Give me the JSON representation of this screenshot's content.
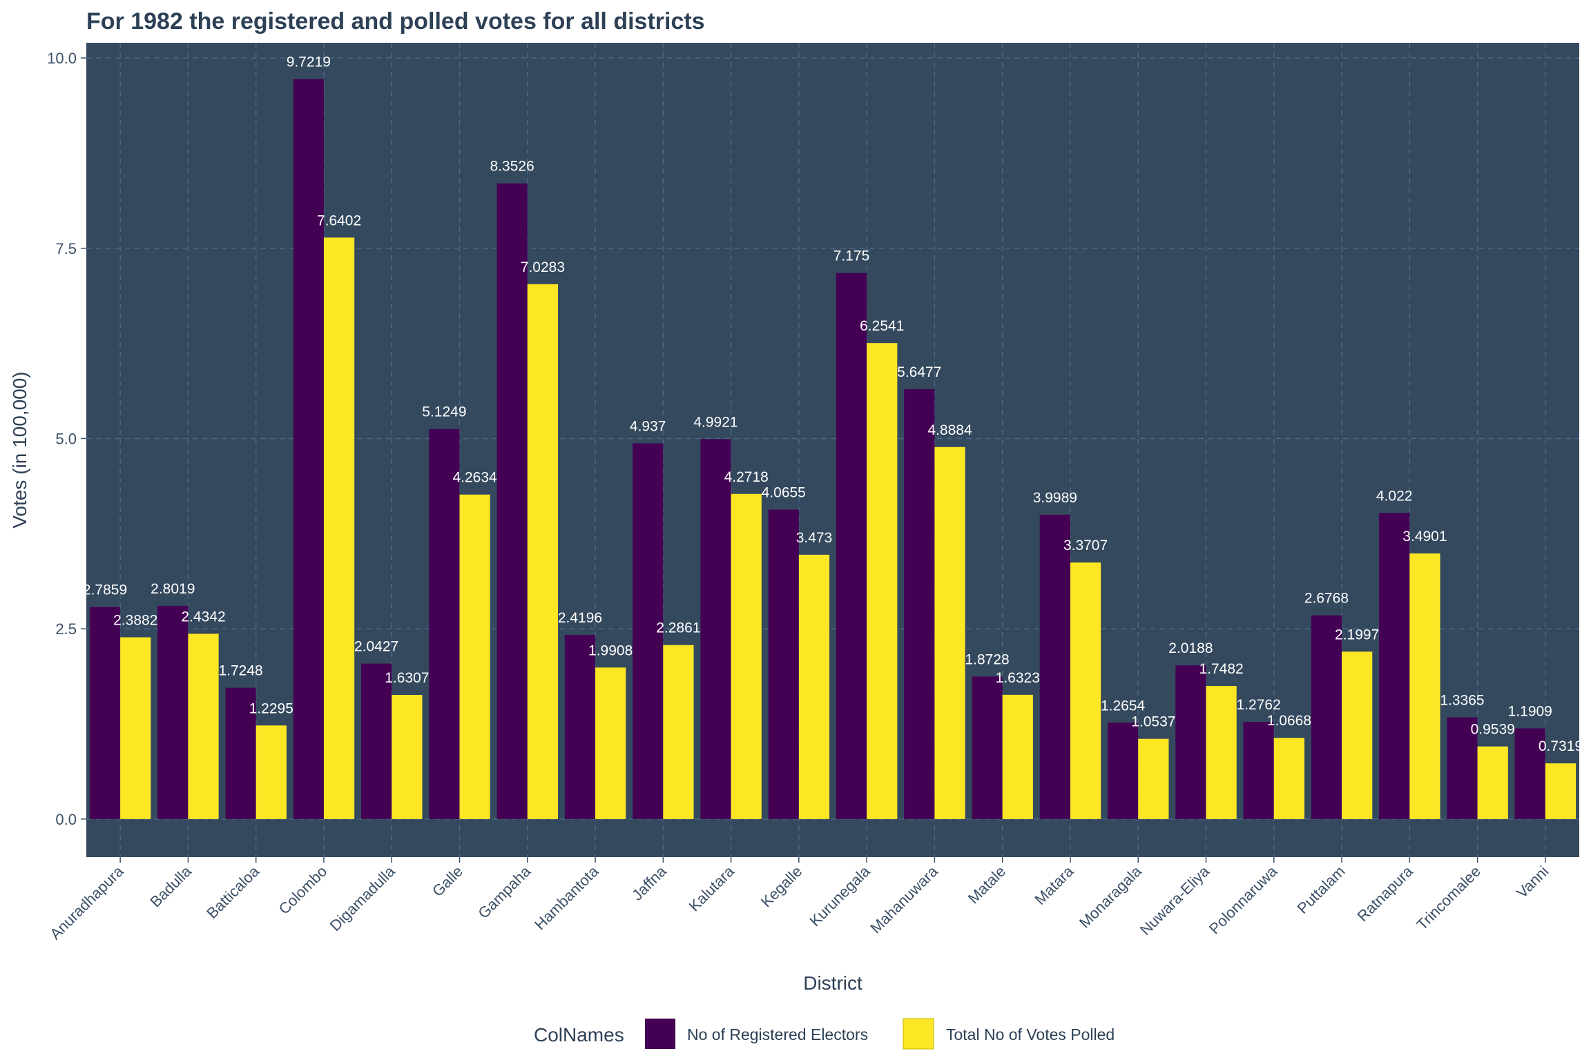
{
  "chart_data": {
    "type": "bar",
    "title": "For 1982 the registered and polled votes for all districts",
    "xlabel": "District",
    "ylabel": "Votes (in 100,000)",
    "ylim": [
      -0.5,
      10.2
    ],
    "yticks": [
      "0.0",
      "2.5",
      "5.0",
      "7.5",
      "10.0"
    ],
    "ytick_values": [
      0,
      2.5,
      5,
      7.5,
      10
    ],
    "grid": true,
    "legend_title": "ColNames",
    "legend_position": "bottom",
    "categories": [
      "Anuradhapura",
      "Badulla",
      "Batticaloa",
      "Colombo",
      "Digamadulla",
      "Galle",
      "Gampaha",
      "Hambantota",
      "Jaffna",
      "Kalutara",
      "Kegalle",
      "Kurunegala",
      "Mahanuwara",
      "Matale",
      "Matara",
      "Monaragala",
      "Nuwara-Eliya",
      "Polonnaruwa",
      "Puttalam",
      "Ratnapura",
      "Trincomalee",
      "Vanni"
    ],
    "series": [
      {
        "name": "No of Registered Electors",
        "color": "#440154",
        "values": [
          2.7859,
          2.8019,
          1.7248,
          9.7219,
          2.0427,
          5.1249,
          8.3526,
          2.4196,
          4.937,
          4.9921,
          4.0655,
          7.175,
          5.6477,
          1.8728,
          3.9989,
          1.2654,
          2.0188,
          1.2762,
          2.6768,
          4.022,
          1.3365,
          1.1909
        ],
        "labels": [
          "2.7859",
          "2.8019",
          "1.7248",
          "9.7219",
          "2.0427",
          "5.1249",
          "8.3526",
          "2.4196",
          "4.937",
          "4.9921",
          "4.0655",
          "7.175",
          "5.6477",
          "1.8728",
          "3.9989",
          "1.2654",
          "2.0188",
          "1.2762",
          "2.6768",
          "4.022",
          "1.3365",
          "1.1909"
        ]
      },
      {
        "name": "Total No of Votes Polled",
        "color": "#fde725",
        "values": [
          2.3882,
          2.4342,
          1.2295,
          7.6402,
          1.6307,
          4.2634,
          7.0283,
          1.9908,
          2.2861,
          4.2718,
          3.473,
          6.2541,
          4.8884,
          1.6323,
          3.3707,
          1.0537,
          1.7482,
          1.0668,
          2.1997,
          3.4901,
          0.9539,
          0.7319
        ],
        "labels": [
          "2.3882",
          "2.4342",
          "1.2295",
          "7.6402",
          "1.6307",
          "4.2634",
          "7.0283",
          "1.9908",
          "2.2861",
          "4.2718",
          "3.473",
          "6.2541",
          "4.8884",
          "1.6323",
          "3.3707",
          "1.0537",
          "1.7482",
          "1.0668",
          "2.1997",
          "3.4901",
          "0.9539",
          "0.7319"
        ]
      }
    ],
    "colors": {
      "panel_background": "#34495e",
      "grid": "#4a6784",
      "text": "#2d4056"
    }
  }
}
